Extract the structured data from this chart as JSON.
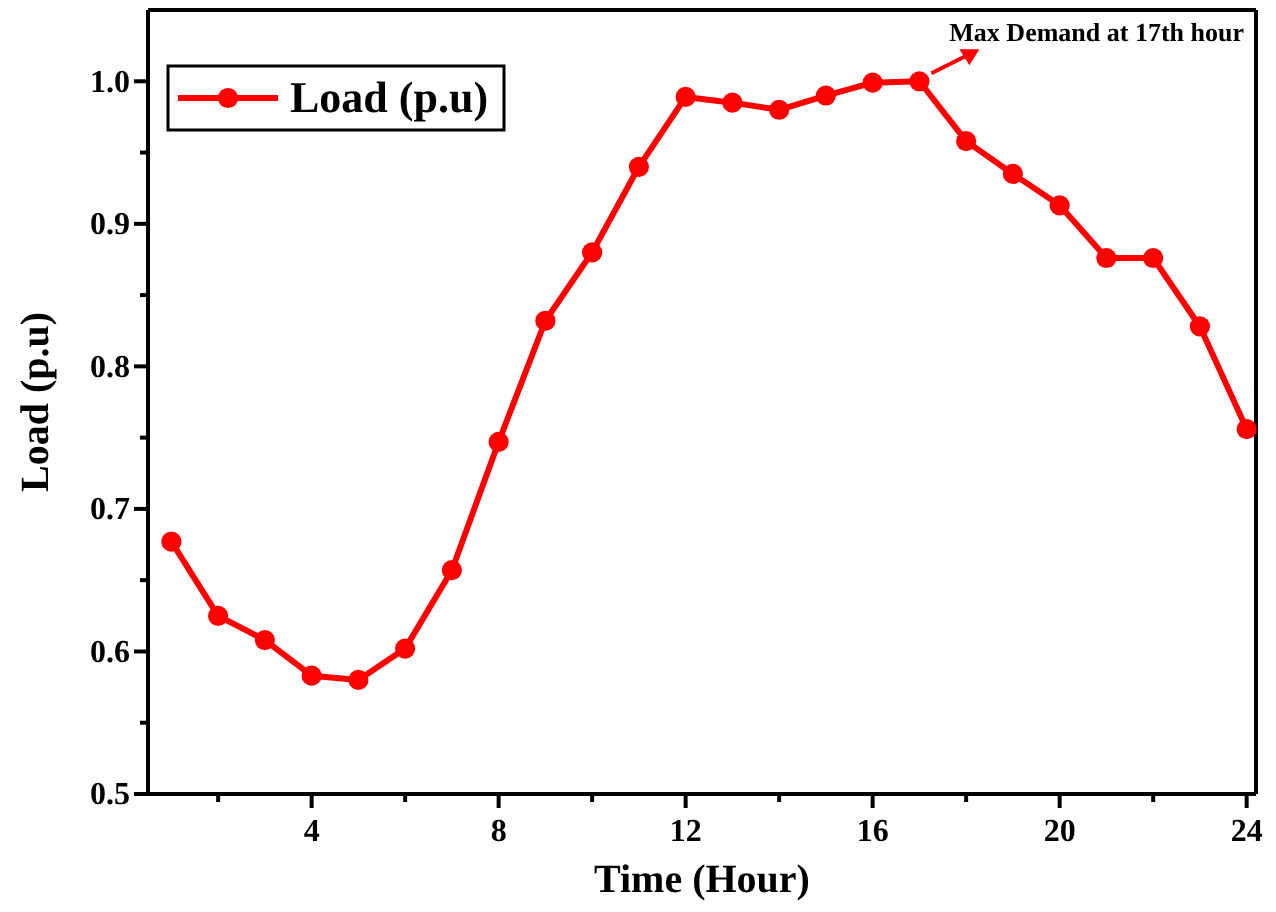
{
  "chart_data": {
    "type": "line",
    "xlabel": "Time (Hour)",
    "ylabel": "Load (p.u)",
    "x": [
      1,
      2,
      3,
      4,
      5,
      6,
      7,
      8,
      9,
      10,
      11,
      12,
      13,
      14,
      15,
      16,
      17,
      18,
      19,
      20,
      21,
      22,
      23,
      24
    ],
    "series": [
      {
        "name": "Load (p.u)",
        "color": "#ff0000",
        "values": [
          0.677,
          0.625,
          0.608,
          0.583,
          0.58,
          0.602,
          0.657,
          0.747,
          0.832,
          0.88,
          0.94,
          0.989,
          0.985,
          0.98,
          0.99,
          0.999,
          1.0,
          0.958,
          0.935,
          0.913,
          0.876,
          0.876,
          0.828,
          0.756
        ]
      }
    ],
    "xlim": [
      0.5,
      24.2
    ],
    "ylim": [
      0.5,
      1.05
    ],
    "xticks": [
      {
        "value": 2,
        "label": null
      },
      4,
      {
        "value": 6,
        "label": null
      },
      8,
      {
        "value": 10,
        "label": null
      },
      12,
      {
        "value": 14,
        "label": null
      },
      16,
      {
        "value": 18,
        "label": null
      },
      20,
      {
        "value": 22,
        "label": null
      },
      24
    ],
    "yticks": [
      {
        "value": 0.5,
        "label": "0.5"
      },
      {
        "value": 0.55,
        "label": null
      },
      {
        "value": 0.6,
        "label": "0.6"
      },
      {
        "value": 0.65,
        "label": null
      },
      {
        "value": 0.7,
        "label": "0.7"
      },
      {
        "value": 0.75,
        "label": null
      },
      {
        "value": 0.8,
        "label": "0.8"
      },
      {
        "value": 0.85,
        "label": null
      },
      {
        "value": 0.9,
        "label": "0.9"
      },
      {
        "value": 0.95,
        "label": null
      },
      {
        "value": 1.0,
        "label": "1.0"
      }
    ],
    "annotations": [
      {
        "text": "Max Demand at 17th hour",
        "x": 17,
        "y": 1.0
      }
    ],
    "legend": "top left",
    "marker": "circle",
    "line_style": "solid",
    "grid": false
  }
}
